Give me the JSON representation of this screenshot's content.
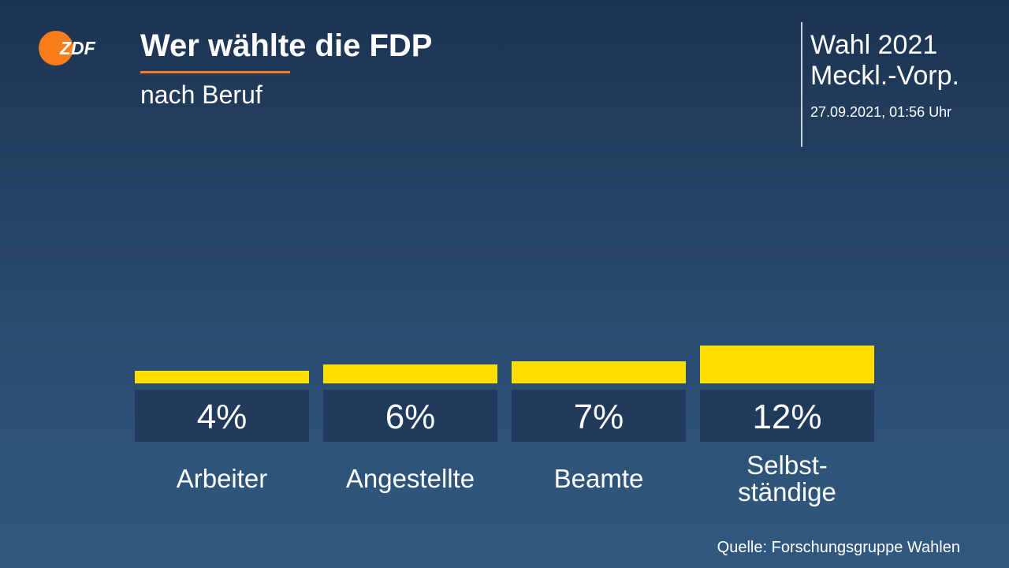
{
  "header": {
    "logo_text": "ZDF",
    "title": "Wer wählte die FDP",
    "subtitle": "nach Beruf"
  },
  "info": {
    "election_line1": "Wahl 2021",
    "election_line2": "Meckl.-Vorp.",
    "timestamp": "27.09.2021, 01:56 Uhr"
  },
  "colors": {
    "bar": "#ffde00",
    "label_box": "#1f3a5a",
    "accent": "#f97d1c"
  },
  "chart_data": {
    "type": "bar",
    "categories": [
      [
        "Arbeiter"
      ],
      [
        "Angestellte"
      ],
      [
        "Beamte"
      ],
      [
        "Selbst-",
        "ständige"
      ]
    ],
    "values": [
      4,
      6,
      7,
      12
    ],
    "value_labels": [
      "4%",
      "6%",
      "7%",
      "12%"
    ],
    "unit": "%",
    "ylim": [
      0,
      12
    ],
    "grid": false
  },
  "footer": {
    "source": "Quelle: Forschungsgruppe Wahlen"
  }
}
